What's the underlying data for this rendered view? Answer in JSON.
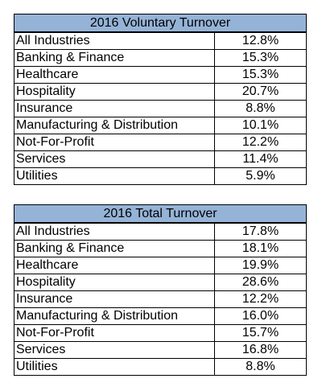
{
  "colors": {
    "header_bg": "#95b3d7",
    "border": "#000000",
    "text": "#000000"
  },
  "chart_data": [
    {
      "type": "table",
      "title": "2016 Voluntary Turnover",
      "rows": [
        {
          "industry": "All Industries",
          "value": "12.8%"
        },
        {
          "industry": "Banking & Finance",
          "value": "15.3%"
        },
        {
          "industry": "Healthcare",
          "value": "15.3%"
        },
        {
          "industry": "Hospitality",
          "value": "20.7%"
        },
        {
          "industry": "Insurance",
          "value": "8.8%"
        },
        {
          "industry": "Manufacturing & Distribution",
          "value": "10.1%"
        },
        {
          "industry": "Not-For-Profit",
          "value": "12.2%"
        },
        {
          "industry": "Services",
          "value": "11.4%"
        },
        {
          "industry": "Utilities",
          "value": "5.9%"
        }
      ]
    },
    {
      "type": "table",
      "title": "2016 Total Turnover",
      "rows": [
        {
          "industry": "All Industries",
          "value": "17.8%"
        },
        {
          "industry": "Banking & Finance",
          "value": "18.1%"
        },
        {
          "industry": "Healthcare",
          "value": "19.9%"
        },
        {
          "industry": "Hospitality",
          "value": "28.6%"
        },
        {
          "industry": "Insurance",
          "value": "12.2%"
        },
        {
          "industry": "Manufacturing & Distribution",
          "value": "16.0%"
        },
        {
          "industry": "Not-For-Profit",
          "value": "15.7%"
        },
        {
          "industry": "Services",
          "value": "16.8%"
        },
        {
          "industry": "Utilities",
          "value": "8.8%"
        }
      ]
    }
  ]
}
